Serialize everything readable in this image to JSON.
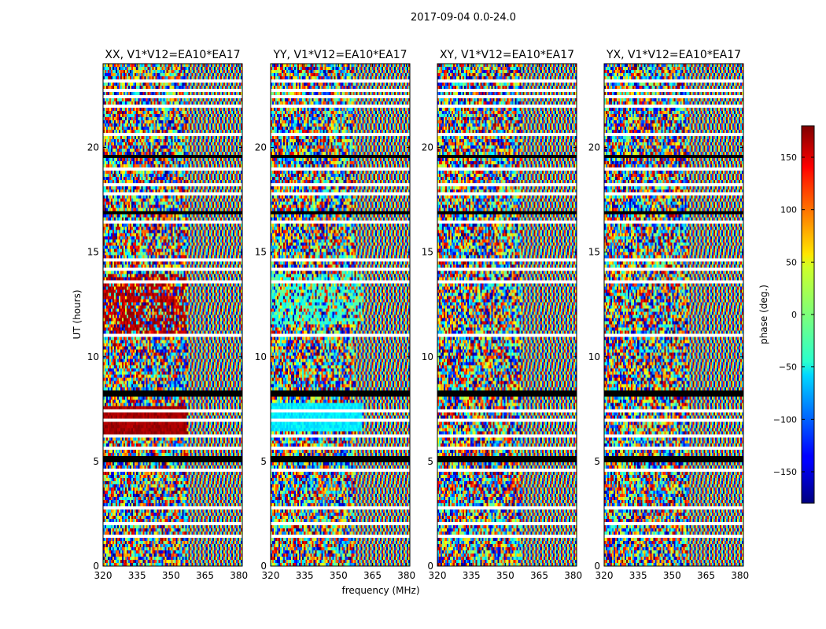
{
  "figure": {
    "suptitle": "2017-09-04 0.0-24.0",
    "ylabel": "UT (hours)",
    "xlabel": "frequency (MHz)"
  },
  "chart_data": [
    {
      "type": "heatmap",
      "title": "XX, V1*V12=EA10*EA17",
      "pol": "XX",
      "xlim": [
        320,
        381.5
      ],
      "ylim": [
        0,
        24
      ],
      "xticks": [
        320,
        335,
        350,
        365,
        380
      ],
      "yticks": [
        0,
        5,
        10,
        15,
        20
      ],
      "value_range": [
        -180,
        180
      ]
    },
    {
      "type": "heatmap",
      "title": "YY, V1*V12=EA10*EA17",
      "pol": "YY",
      "xlim": [
        320,
        381.5
      ],
      "ylim": [
        0,
        24
      ],
      "xticks": [
        320,
        335,
        350,
        365,
        380
      ],
      "yticks": [
        0,
        5,
        10,
        15,
        20
      ],
      "value_range": [
        -180,
        180
      ]
    },
    {
      "type": "heatmap",
      "title": "XY, V1*V12=EA10*EA17",
      "pol": "XY",
      "xlim": [
        320,
        381.5
      ],
      "ylim": [
        0,
        24
      ],
      "xticks": [
        320,
        335,
        350,
        365,
        380
      ],
      "yticks": [
        0,
        5,
        10,
        15,
        20
      ],
      "value_range": [
        -180,
        180
      ]
    },
    {
      "type": "heatmap",
      "title": "YX, V1*V12=EA10*EA17",
      "pol": "YX",
      "xlim": [
        320,
        381.5
      ],
      "ylim": [
        0,
        24
      ],
      "xticks": [
        320,
        335,
        350,
        365,
        380
      ],
      "yticks": [
        0,
        5,
        10,
        15,
        20
      ],
      "value_range": [
        -180,
        180
      ]
    }
  ],
  "colorbar": {
    "label": "phase (deg.)",
    "range": [
      -180,
      180
    ],
    "ticks": [
      150,
      100,
      50,
      0,
      -50,
      -100,
      -150
    ],
    "tick_labels": [
      "150",
      "100",
      "50",
      "0",
      "−50",
      "−100",
      "−150"
    ],
    "colormap": "jet"
  }
}
